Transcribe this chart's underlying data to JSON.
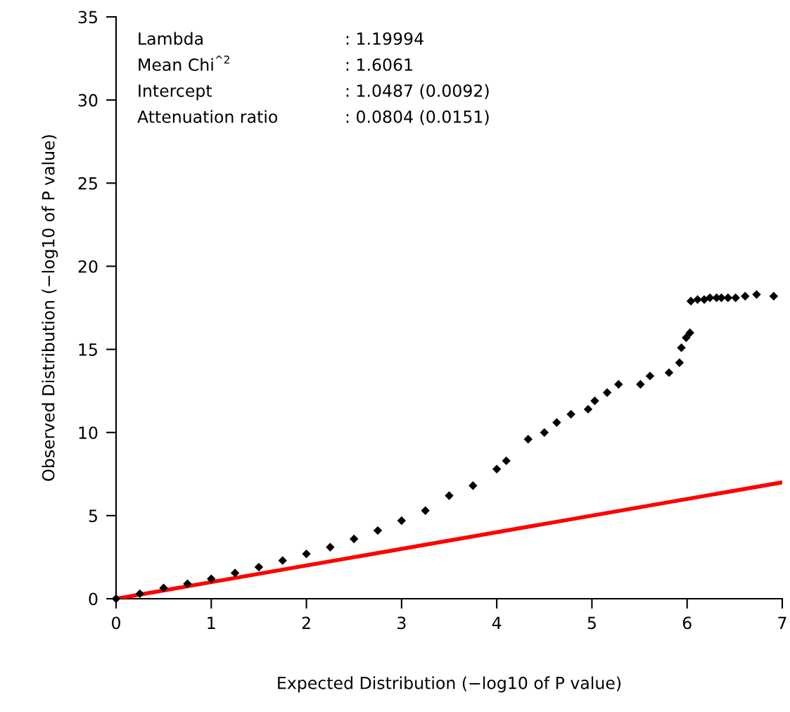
{
  "chart_data": {
    "type": "scatter",
    "xlabel": "Expected Distribution (−log10 of P value)",
    "ylabel": "Observed Distribution (−log10 of P value)",
    "xlim": [
      0,
      7
    ],
    "ylim": [
      0,
      35
    ],
    "xticks": [
      0,
      1,
      2,
      3,
      4,
      5,
      6,
      7
    ],
    "yticks": [
      0,
      5,
      10,
      15,
      20,
      25,
      30,
      35
    ],
    "grid": false,
    "series": [
      {
        "color": "#000000",
        "marker": "diamond",
        "x": [
          0,
          0.25,
          0.5,
          0.75,
          1,
          1.25,
          1.5,
          1.75,
          2,
          2.25,
          2.5,
          2.75,
          3,
          3.25,
          3.5,
          3.75,
          4,
          4.1,
          4.33,
          4.5,
          4.63,
          4.78,
          4.96,
          5.03,
          5.16,
          5.28,
          5.51,
          5.61,
          5.81,
          5.92,
          5.94,
          5.99,
          6.03,
          6.04,
          6.11,
          6.18,
          6.24,
          6.31,
          6.36,
          6.43,
          6.51,
          6.61,
          6.73,
          6.91
        ],
        "values": [
          0,
          0.3,
          0.65,
          0.9,
          1.2,
          1.55,
          1.9,
          2.3,
          2.7,
          3.1,
          3.6,
          4.1,
          4.7,
          5.3,
          6.2,
          6.8,
          7.8,
          8.3,
          9.6,
          10.0,
          10.6,
          11.1,
          11.4,
          11.9,
          12.4,
          12.9,
          12.9,
          13.4,
          13.6,
          14.2,
          15.1,
          15.7,
          16.0,
          17.9,
          18.0,
          18.0,
          18.1,
          18.1,
          18.1,
          18.1,
          18.1,
          18.2,
          18.3,
          18.2
        ]
      },
      {
        "type": "line",
        "color": "#ff0000",
        "line_style": "solid",
        "x": [
          0,
          7
        ],
        "values": [
          0,
          7
        ]
      }
    ],
    "annotations": [
      "Lambda",
      ": 1.19994",
      "Mean Chi$^{^2}$",
      ": 1.6061",
      "Intercept",
      ": 1.0487 (0.0092)",
      "Attenuation ratio",
      ": 0.0804 (0.0151)"
    ]
  }
}
